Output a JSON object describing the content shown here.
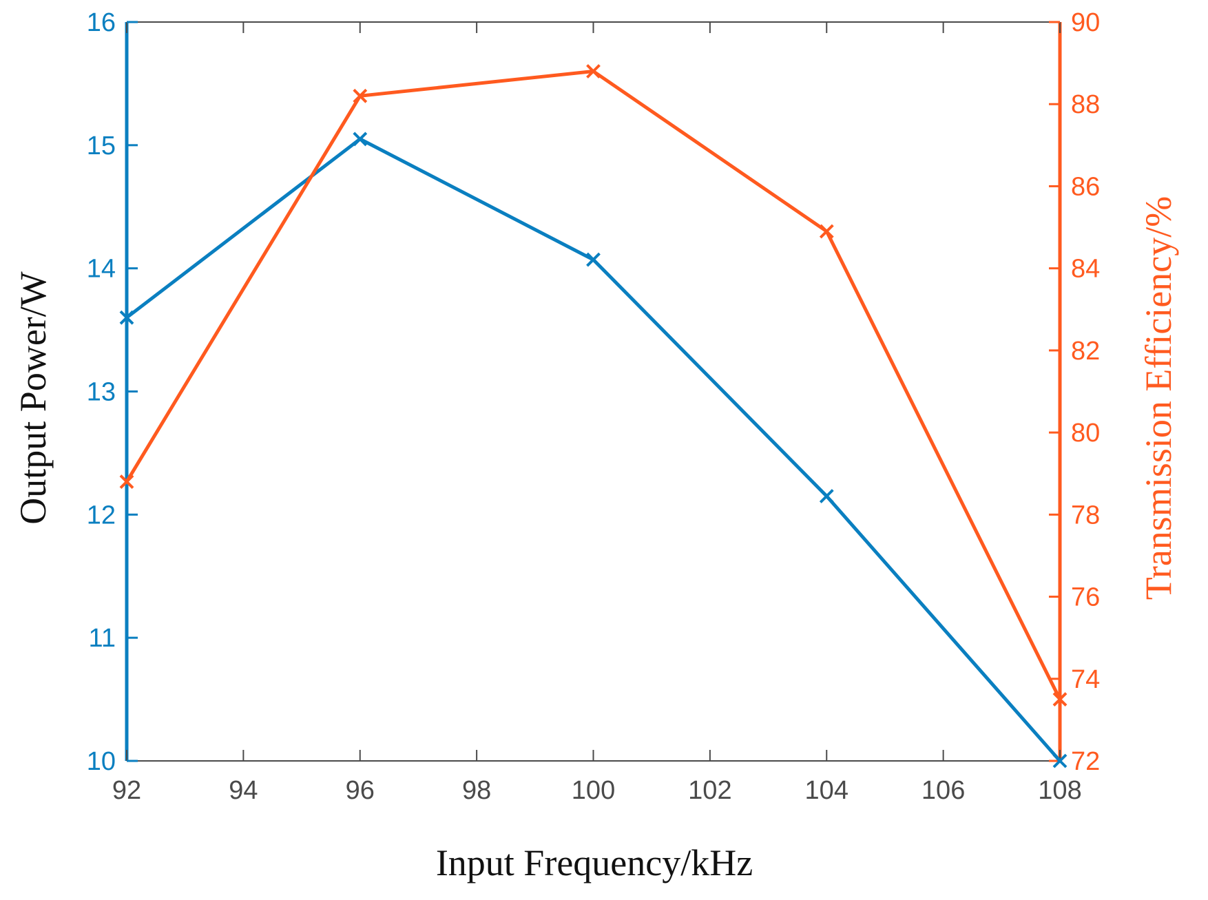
{
  "chart_data": {
    "type": "line",
    "title": "",
    "xlabel": "Input Frequency/kHz",
    "ylabel_left": "Output Power/W",
    "ylabel_right": "Transmission Efficiency/%",
    "x": [
      92,
      96,
      100,
      104,
      108
    ],
    "xlim": [
      92,
      108
    ],
    "xticks": [
      "92",
      "94",
      "96",
      "98",
      "100",
      "102",
      "104",
      "106",
      "108"
    ],
    "ylim_left": [
      10,
      16
    ],
    "yticks_left": [
      "10",
      "11",
      "12",
      "13",
      "14",
      "15",
      "16"
    ],
    "ylim_right": [
      72,
      90
    ],
    "yticks_right": [
      "72",
      "74",
      "76",
      "78",
      "80",
      "82",
      "84",
      "86",
      "88",
      "90"
    ],
    "grid": false,
    "series": [
      {
        "name": "Output Power/W",
        "axis": "left",
        "marker": "x",
        "color": "#0a7fc0",
        "values": [
          13.6,
          15.05,
          14.07,
          12.15,
          10.0
        ]
      },
      {
        "name": "Transmission Efficiency/%",
        "axis": "right",
        "marker": "x",
        "color": "#ff5a1f",
        "values": [
          78.8,
          88.2,
          88.8,
          84.9,
          73.5
        ]
      }
    ]
  },
  "colors": {
    "left_axis": "#0a7fc0",
    "right_axis": "#ff5a1f",
    "bottom_axis": "#4a4a4a",
    "axis_title_dark": "#111111"
  }
}
